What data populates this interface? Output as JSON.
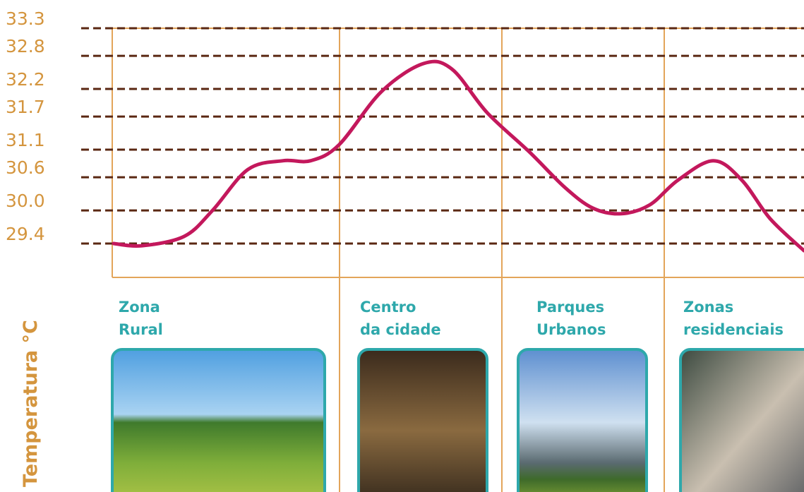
{
  "chart_data": {
    "type": "line",
    "y_label": "Temperatura °C",
    "zone_labels": [
      [
        "Zona",
        "Rural"
      ],
      [
        "Centro",
        "da cidade"
      ],
      [
        "Parques",
        "Urbanos"
      ],
      [
        "Zonas",
        "residenciais"
      ]
    ],
    "x": [
      0.02,
      0.43,
      1.04,
      1.45,
      1.96,
      2.47,
      2.87,
      3.28,
      3.89,
      4.5,
      4.91,
      5.42,
      6.03,
      6.54,
      6.95,
      7.36,
      7.77,
      8.18,
      8.69,
      9.1,
      9.51,
      10.0
    ],
    "series": [
      {
        "color": "#c3185c",
        "values": [
          29.4,
          29.36,
          29.53,
          30.0,
          30.74,
          30.9,
          30.9,
          31.19,
          32.15,
          32.66,
          32.56,
          31.77,
          31.06,
          30.42,
          30.04,
          29.94,
          30.1,
          30.55,
          30.9,
          30.55,
          29.85,
          29.27
        ]
      }
    ],
    "xlim": [
      0,
      10
    ],
    "ylim": [
      29.4,
      33.3
    ],
    "yticks": [
      33.3,
      32.8,
      32.2,
      31.7,
      31.1,
      30.6,
      {
        "value": 30,
        "label": "30.0"
      },
      29.4
    ],
    "grid": true
  }
}
